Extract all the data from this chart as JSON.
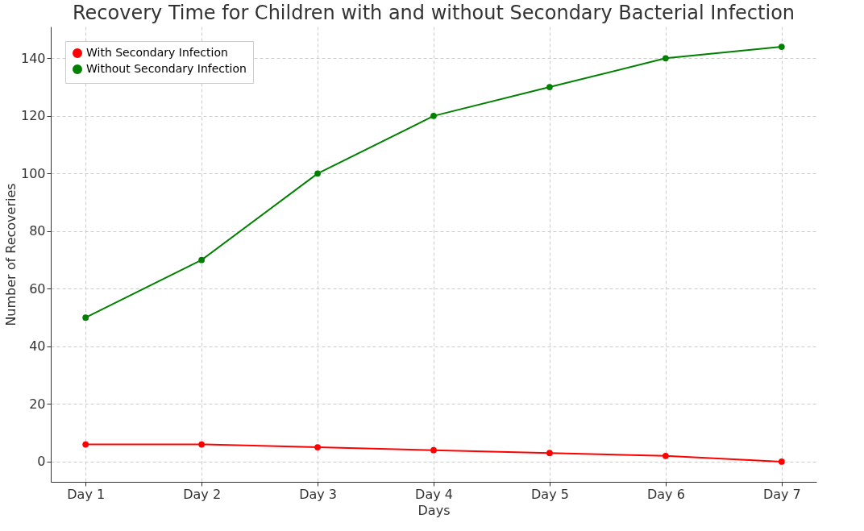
{
  "chart_data": {
    "type": "line",
    "title": "Recovery Time for Children with and without Secondary Bacterial Infection",
    "xlabel": "Days",
    "ylabel": "Number of Recoveries",
    "categories": [
      "Day 1",
      "Day 2",
      "Day 3",
      "Day 4",
      "Day 5",
      "Day 6",
      "Day 7"
    ],
    "series": [
      {
        "name": "With Secondary Infection",
        "color": "#ff0000",
        "values": [
          6,
          6,
          5,
          4,
          3,
          2,
          0
        ]
      },
      {
        "name": "Without Secondary Infection",
        "color": "#008000",
        "values": [
          50,
          70,
          100,
          120,
          130,
          140,
          144
        ]
      }
    ],
    "ylim": [
      -7,
      151
    ],
    "yticks": [
      0,
      20,
      40,
      60,
      80,
      100,
      120,
      140
    ],
    "grid": true,
    "legend": "top left",
    "marker": "circle",
    "line_style": "solid"
  }
}
